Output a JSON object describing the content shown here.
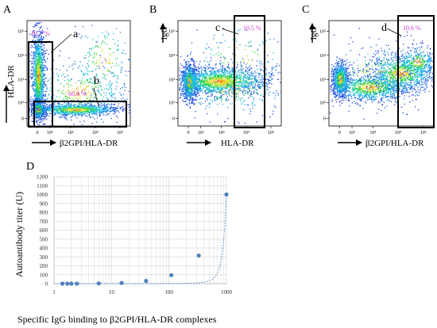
{
  "panels": [
    {
      "letter": "A",
      "x_label": "β2GPI/HLA-DR",
      "y_label": "HLA-DR",
      "x_ticks": [
        "0",
        "10²",
        "10³",
        "10⁴",
        "10⁵"
      ],
      "y_ticks": [
        "0",
        "10²",
        "10³",
        "10⁴",
        "10⁵"
      ],
      "gates": [
        {
          "label": "a",
          "percent": "61.7 %"
        },
        {
          "label": "b",
          "percent": "66.4 %"
        }
      ]
    },
    {
      "letter": "B",
      "x_label": "HLA-DR",
      "y_label": "IgG",
      "x_ticks": [
        "0",
        "10²",
        "10³",
        "10⁴",
        "10⁵"
      ],
      "y_ticks": [
        "0",
        "10²",
        "10³",
        "10⁴",
        "10⁵"
      ],
      "gates": [
        {
          "label": "c",
          "percent": "10.5 %"
        }
      ]
    },
    {
      "letter": "C",
      "x_label": "β2GPI/HLA-DR",
      "y_label": "IgG",
      "x_ticks": [
        "0",
        "10²",
        "10³",
        "10⁴",
        "10⁵"
      ],
      "y_ticks": [
        "0",
        "10²",
        "10³",
        "10⁴",
        "10⁵"
      ],
      "gates": [
        {
          "label": "d",
          "percent": "10.6 %"
        }
      ]
    }
  ],
  "chart_data": {
    "letter": "D",
    "type": "scatter",
    "x_scale": "log",
    "x_ticks": [
      1,
      10,
      100,
      1000
    ],
    "y_ticks": [
      0,
      100,
      200,
      300,
      400,
      500,
      600,
      700,
      800,
      900,
      1000,
      1100,
      1200
    ],
    "xlim": [
      1,
      1000
    ],
    "ylim": [
      0,
      1200
    ],
    "xlabel": "Specific IgG binding to β2GPI/HLA-DR  complexes",
    "ylabel": "Autoantibody titer (U)",
    "x": [
      1.4,
      1.7,
      2.0,
      2.5,
      6.0,
      15,
      40,
      110,
      330,
      1000
    ],
    "y": [
      0,
      0,
      0,
      0,
      2,
      8,
      30,
      95,
      315,
      1000
    ],
    "trendline": "dotted exponential fit",
    "colors": {
      "points": "#4f81bd",
      "trend": "#4f81bd",
      "grid": "#d9d9d9",
      "axis": "#bfbfbf"
    }
  },
  "colors": {
    "gate_percent": "#cc33cc",
    "gate_box": "#000000"
  }
}
